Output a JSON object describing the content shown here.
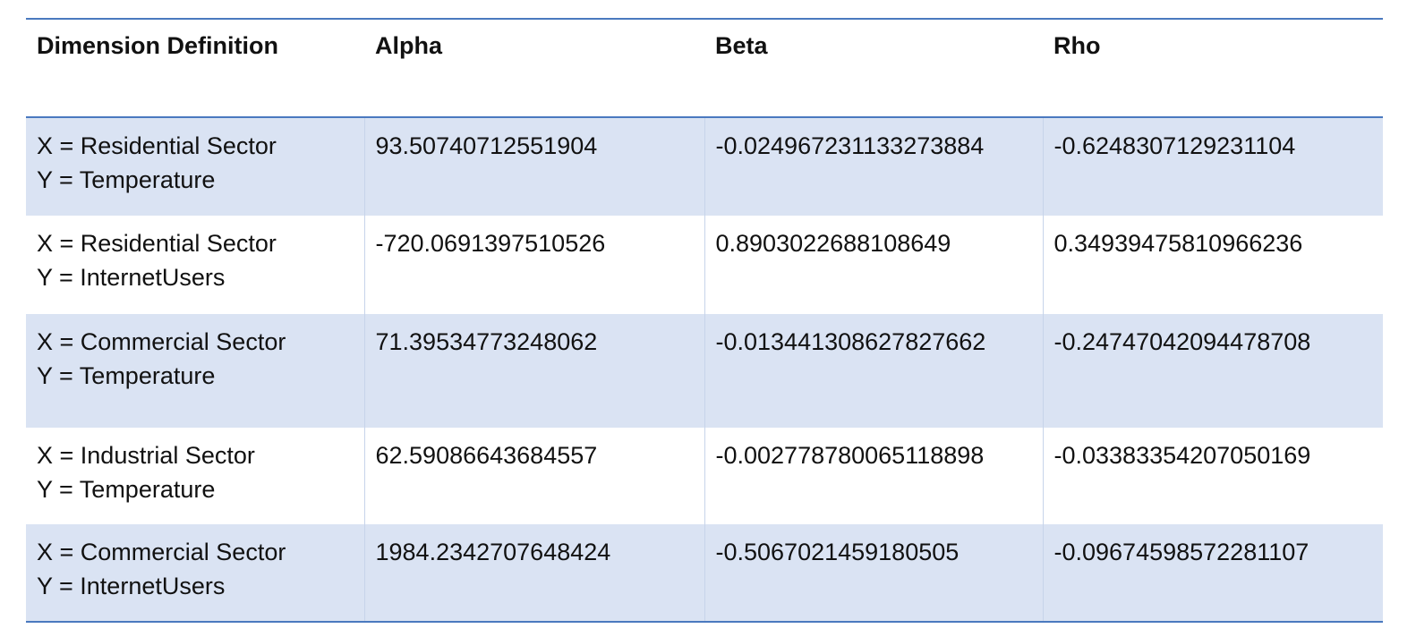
{
  "table": {
    "headers": [
      "Dimension Definition",
      "Alpha",
      "Beta",
      "Rho"
    ],
    "rows": [
      {
        "x": "X = Residential Sector",
        "y": "Y = Temperature",
        "alpha": "93.50740712551904",
        "beta": "-0.024967231133273884",
        "rho": "-0.6248307129231104"
      },
      {
        "x": "X = Residential Sector",
        "y": "Y = InternetUsers",
        "alpha": "-720.0691397510526",
        "beta": "0.8903022688108649",
        "rho": "0.34939475810966236"
      },
      {
        "x": "X = Commercial Sector",
        "y": "Y = Temperature",
        "alpha": "71.39534773248062",
        "beta": "-0.013441308627827662",
        "rho": "-0.24747042094478708"
      },
      {
        "x": "X = Industrial Sector",
        "y": "Y = Temperature",
        "alpha": "62.59086643684557",
        "beta": "-0.002778780065118898",
        "rho": "-0.03383354207050169"
      },
      {
        "x": "X = Commercial Sector",
        "y": "Y = InternetUsers",
        "alpha": "1984.2342707648424",
        "beta": "-0.5067021459180505",
        "rho": "-0.09674598572281107"
      }
    ]
  },
  "colors": {
    "accent_rule": "#4a79bf",
    "row_shade": "#dae3f3"
  }
}
